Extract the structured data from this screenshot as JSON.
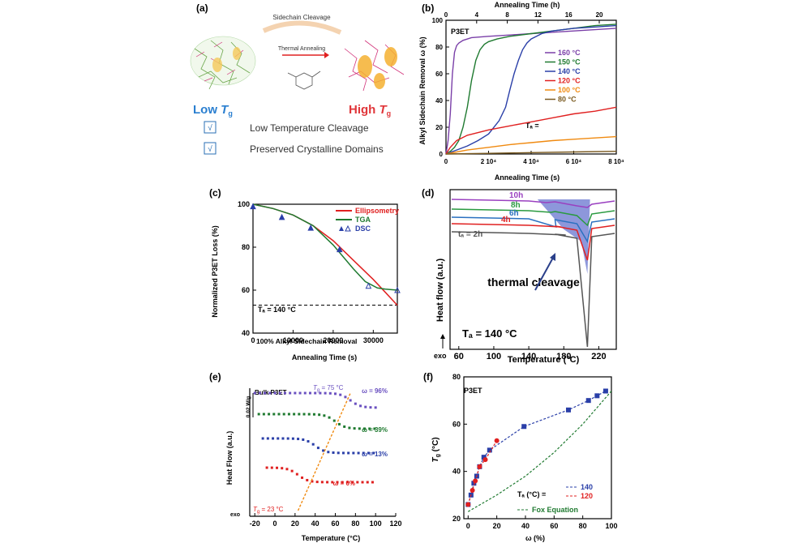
{
  "figure": {
    "panels": [
      {
        "id": "a",
        "label": "(a)",
        "illustration_text": {
          "top": "Sidechain Cleavage",
          "middle": "Thermal Annealing"
        },
        "low_tg_text": "Low",
        "high_tg_text": "High",
        "tg_symbol": "T",
        "tg_sub": "g",
        "checklist": [
          {
            "mark": "√",
            "text": "Low Temperature Cleavage"
          },
          {
            "mark": "√",
            "text": "Preserved Crystalline Domains"
          }
        ],
        "colors": {
          "low": "#2a7fd0",
          "high": "#e0363a",
          "check": "#2a6fb5"
        }
      }
    ]
  },
  "chart_data": [
    {
      "id": "b",
      "type": "line",
      "label": "(b)",
      "inner_title": "P3ET",
      "xlabel": "Annealing Time (s)",
      "x2label": "Annealing Time (h)",
      "ylabel": "Alkyl Sidechain Removal ω (%)",
      "xlim": [
        0,
        80000
      ],
      "ylim": [
        0,
        100
      ],
      "xticks": [
        "0",
        "2 10⁴",
        "4 10⁴",
        "6 10⁴",
        "8 10⁴"
      ],
      "xtick_values": [
        0,
        20000,
        40000,
        60000,
        80000
      ],
      "x2ticks": [
        "0",
        "4",
        "8",
        "12",
        "16",
        "20"
      ],
      "x2tick_values": [
        0,
        4,
        8,
        12,
        16,
        20
      ],
      "yticks": [
        "0",
        "20",
        "40",
        "60",
        "80",
        "100"
      ],
      "legend_prefix": "Tₐ =",
      "series": [
        {
          "name": "160 °C",
          "color": "#7a3fa8",
          "x": [
            0,
            1000,
            2000,
            3000,
            4000,
            5000,
            6000,
            8000,
            12000,
            20000,
            30000,
            40000,
            50000,
            60000,
            70000,
            80000
          ],
          "y": [
            0,
            10,
            30,
            60,
            76,
            81,
            83,
            85,
            87,
            88,
            89,
            90,
            91,
            92,
            93,
            94
          ]
        },
        {
          "name": "150 °C",
          "color": "#1f7a30",
          "x": [
            0,
            2000,
            4000,
            6000,
            8000,
            10000,
            12000,
            14000,
            16000,
            18000,
            20000,
            24000,
            30000,
            40000,
            50000,
            60000,
            70000,
            80000
          ],
          "y": [
            0,
            2,
            5,
            10,
            20,
            35,
            55,
            70,
            78,
            82,
            84,
            86,
            88,
            90,
            92,
            94,
            96,
            97
          ]
        },
        {
          "name": "140 °C",
          "color": "#2a3fa8",
          "x": [
            0,
            5000,
            10000,
            15000,
            20000,
            25000,
            28000,
            30000,
            32000,
            34000,
            36000,
            38000,
            40000,
            45000,
            50000,
            60000,
            70000,
            80000
          ],
          "y": [
            0,
            3,
            6,
            10,
            15,
            25,
            35,
            48,
            60,
            70,
            78,
            83,
            86,
            90,
            92,
            94,
            95,
            96
          ]
        },
        {
          "name": "120 °C",
          "color": "#e02020",
          "x": [
            0,
            2000,
            5000,
            10000,
            20000,
            30000,
            40000,
            50000,
            60000,
            70000,
            80000
          ],
          "y": [
            0,
            5,
            10,
            14,
            18,
            21,
            24,
            27,
            30,
            32,
            35
          ]
        },
        {
          "name": "100 °C",
          "color": "#f08a10",
          "x": [
            0,
            10000,
            20000,
            30000,
            40000,
            50000,
            60000,
            70000,
            80000
          ],
          "y": [
            0,
            3,
            5,
            7,
            8.5,
            10,
            11,
            12,
            13
          ]
        },
        {
          "name": "80 °C",
          "color": "#7a5a20",
          "x": [
            0,
            20000,
            40000,
            60000,
            80000
          ],
          "y": [
            0,
            0.5,
            1,
            1.5,
            2
          ]
        }
      ]
    },
    {
      "id": "c",
      "type": "line",
      "label": "(c)",
      "xlabel": "Annealing Time (s)",
      "ylabel": "Normalized P3ET Loss (%)",
      "xlim": [
        0,
        36000
      ],
      "ylim": [
        40,
        100
      ],
      "xticks": [
        "0",
        "10000",
        "20000",
        "30000"
      ],
      "xtick_values": [
        0,
        10000,
        20000,
        30000
      ],
      "yticks": [
        "40",
        "60",
        "80",
        "100"
      ],
      "ytick_values": [
        40,
        60,
        80,
        100
      ],
      "annotation_ta": "Tₐ = 140 °C",
      "dashed_line_label": "100% Alkyl Sidechain Removal",
      "dashed_line_value": 53,
      "series": [
        {
          "name": "Ellipsometry",
          "color": "#e02020",
          "x": [
            0,
            5000,
            10000,
            15000,
            20000,
            25000,
            30000,
            33000,
            36000
          ],
          "y": [
            100,
            98,
            95,
            90,
            83,
            74,
            65,
            59,
            53
          ]
        },
        {
          "name": "TGA",
          "color": "#1f7a30",
          "x": [
            0,
            5000,
            10000,
            15000,
            20000,
            25000,
            28000,
            31000,
            33000,
            36000
          ],
          "y": [
            100,
            98,
            95,
            90,
            81,
            70,
            64,
            61,
            60.5,
            60
          ]
        },
        {
          "name": "DSC",
          "color": "#2a3fa8",
          "marker": "triangle",
          "x": [
            0,
            7200,
            14400,
            21600,
            28800,
            36000
          ],
          "y": [
            99,
            94,
            89,
            79,
            62,
            60
          ]
        }
      ]
    },
    {
      "id": "d",
      "type": "line",
      "label": "(d)",
      "xlabel": "Temperature (°C)",
      "ylabel": "Heat flow (a.u.)",
      "ylabel_exo": "exo",
      "xlim": [
        50,
        240
      ],
      "xticks": [
        "60",
        "100",
        "140",
        "180",
        "220"
      ],
      "xtick_values": [
        60,
        100,
        140,
        180,
        220
      ],
      "annotation_ta": "Tₐ = 140 °C",
      "annotation_text": "thermal cleavage",
      "series": [
        {
          "name": "10h",
          "color": "#9a40c0"
        },
        {
          "name": "8h",
          "color": "#2a9a40"
        },
        {
          "name": "6h",
          "color": "#2a70c0"
        },
        {
          "name": "4h",
          "color": "#e02020"
        },
        {
          "name": "tₐ = 2h",
          "color": "#555555"
        }
      ]
    },
    {
      "id": "e",
      "type": "scatter",
      "label": "(e)",
      "inner_title": "Bulk P3ET",
      "scale_label": "0.02 W/g",
      "xlabel": "Temperature (°C)",
      "ylabel": "Heat Flow (a.u.)",
      "ylabel_exo": "exo",
      "xlim": [
        -25,
        120
      ],
      "xticks": [
        "-20",
        "0",
        "20",
        "40",
        "60",
        "80",
        "100",
        "120"
      ],
      "xtick_values": [
        -20,
        0,
        20,
        40,
        60,
        80,
        100,
        120
      ],
      "tg_top": "T",
      "tg_top_value": "= 75 °C",
      "tg_bottom": "T",
      "tg_bottom_value": "= 23 °C",
      "series": [
        {
          "name": "ω = 96%",
          "color": "#6a50c0",
          "offset": 0,
          "step_at": 75
        },
        {
          "name": "ω = 39%",
          "color": "#1f7a30",
          "offset": 1,
          "step_at": 60
        },
        {
          "name": "ω = 13%",
          "color": "#2a3fa8",
          "offset": 2,
          "step_at": 40
        },
        {
          "name": "ω = 0%",
          "color": "#e02020",
          "offset": 3,
          "step_at": 23
        }
      ]
    },
    {
      "id": "f",
      "type": "scatter",
      "label": "(f)",
      "inner_title": "P3ET",
      "xlabel": "ω (%)",
      "ylabel": "T_g (°C)",
      "xlim": [
        -3,
        100
      ],
      "ylim": [
        20,
        80
      ],
      "xticks": [
        "0",
        "20",
        "40",
        "60",
        "80",
        "100"
      ],
      "xtick_values": [
        0,
        20,
        40,
        60,
        80,
        100
      ],
      "yticks": [
        "20",
        "40",
        "60",
        "80"
      ],
      "ytick_values": [
        20,
        40,
        60,
        80
      ],
      "legend_prefix": "Tₐ (°C) =",
      "series": [
        {
          "name": "140",
          "color": "#2a3fa8",
          "marker": "square",
          "x": [
            0,
            2,
            4,
            6,
            8,
            11,
            15,
            39,
            70,
            84,
            90,
            96
          ],
          "y": [
            26,
            30,
            35,
            38,
            42,
            46,
            49,
            59,
            66,
            70,
            72,
            74
          ]
        },
        {
          "name": "120",
          "color": "#e02020",
          "marker": "circle",
          "x": [
            0,
            3,
            5,
            8,
            12,
            20
          ],
          "y": [
            26,
            32,
            36,
            42,
            45,
            53
          ]
        },
        {
          "name": "Fox Equation",
          "color": "#1f7a30",
          "dash": true,
          "x": [
            0,
            20,
            40,
            60,
            80,
            100
          ],
          "y": [
            23,
            30,
            38,
            48,
            60,
            74
          ]
        }
      ]
    }
  ]
}
